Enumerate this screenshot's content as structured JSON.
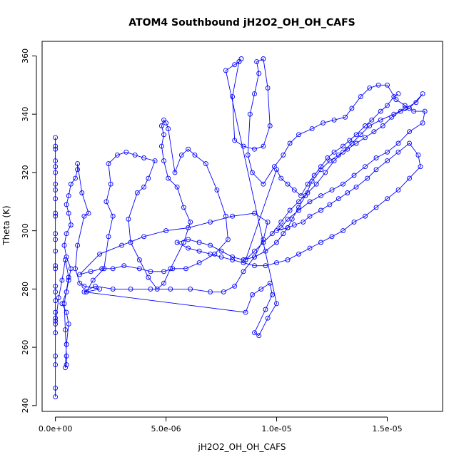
{
  "chart_data": {
    "type": "line",
    "title": "ATOM4 Southbound jH2O2_OH_OH_CAFS",
    "xlabel": "jH2O2_OH_OH_CAFS",
    "ylabel": "Theta (K)",
    "xlim": [
      -6e-07,
      1.75e-05
    ],
    "ylim": [
      238,
      365
    ],
    "x_ticks": [
      0,
      5e-06,
      1e-05,
      1.5e-05
    ],
    "x_tick_labels": [
      "0.0e+00",
      "5.0e-06",
      "1.0e-05",
      "1.5e-05"
    ],
    "y_ticks": [
      240,
      260,
      280,
      300,
      320,
      340,
      360
    ],
    "y_tick_labels": [
      "240",
      "260",
      "280",
      "300",
      "320",
      "340",
      "360"
    ],
    "grid": false,
    "legend": "none",
    "marker": "open-circle",
    "color": "#0000ff",
    "series": [
      {
        "points": [
          [
            0.0,
            243
          ],
          [
            0.0,
            246
          ],
          [
            0.0,
            254
          ],
          [
            0.0,
            257
          ],
          [
            0.0,
            265
          ],
          [
            0.0,
            269
          ],
          [
            0.0,
            272
          ],
          [
            0.0,
            276
          ],
          [
            0.0,
            281
          ],
          [
            0.0,
            287
          ],
          [
            0.0,
            293
          ],
          [
            0.0,
            299
          ],
          [
            0.0,
            305
          ],
          [
            0.0,
            311
          ],
          [
            0.0,
            316
          ],
          [
            0.0,
            320
          ],
          [
            0.0,
            324
          ],
          [
            0.0,
            328
          ],
          [
            0.0,
            332
          ],
          [
            0.0,
            329
          ],
          [
            0.0,
            322
          ],
          [
            0.0,
            314
          ],
          [
            0.0,
            306
          ],
          [
            0.0,
            297
          ],
          [
            0.0,
            288
          ],
          [
            0.0,
            279
          ],
          [
            0.0,
            270
          ],
          [
            0.0,
            268
          ],
          [
            1.5e-07,
            277
          ],
          [
            3e-07,
            283
          ],
          [
            4.5e-07,
            290
          ],
          [
            6e-07,
            284
          ],
          [
            4e-07,
            275
          ],
          [
            4.5e-07,
            266
          ],
          [
            5e-07,
            257
          ],
          [
            5e-07,
            254
          ],
          [
            4.5e-07,
            253
          ],
          [
            5e-07,
            261
          ],
          [
            6e-07,
            268
          ],
          [
            5e-07,
            272
          ],
          [
            3e-07,
            275
          ],
          [
            5e-07,
            279
          ],
          [
            6e-07,
            283
          ],
          [
            7e-07,
            287
          ],
          [
            5e-07,
            291
          ],
          [
            4e-07,
            295
          ],
          [
            5e-07,
            299
          ],
          [
            7e-07,
            302
          ],
          [
            6e-07,
            306
          ],
          [
            5e-07,
            309
          ],
          [
            6e-07,
            312
          ],
          [
            7e-07,
            316
          ],
          [
            9e-07,
            318
          ],
          [
            1e-06,
            321
          ],
          [
            1e-06,
            323
          ],
          [
            1.2e-06,
            313
          ],
          [
            1.5e-06,
            306
          ],
          [
            1.3e-06,
            305
          ],
          [
            1e-06,
            295
          ],
          [
            9e-07,
            287
          ],
          [
            1.1e-06,
            282
          ],
          [
            1.3e-06,
            281
          ],
          [
            2e-06,
            280
          ],
          [
            1.4e-06,
            279
          ],
          [
            1.7e-06,
            283
          ],
          [
            2.2e-06,
            287
          ],
          [
            2.4e-06,
            298
          ],
          [
            2.6e-06,
            305
          ],
          [
            2.3e-06,
            310
          ],
          [
            2.5e-06,
            316
          ],
          [
            2.4e-06,
            323
          ],
          [
            2.8e-06,
            326
          ],
          [
            3.2e-06,
            327
          ],
          [
            3.6e-06,
            326
          ],
          [
            4e-06,
            325
          ],
          [
            4.5e-06,
            324
          ],
          [
            4.2e-06,
            318
          ],
          [
            4e-06,
            315
          ],
          [
            3.7e-06,
            313
          ],
          [
            3.3e-06,
            304
          ],
          [
            3.4e-06,
            296
          ],
          [
            3.8e-06,
            290
          ],
          [
            4.2e-06,
            284
          ],
          [
            4.6e-06,
            280
          ],
          [
            4.9e-06,
            282
          ],
          [
            5.2e-06,
            287
          ],
          [
            5.8e-06,
            296
          ],
          [
            6.1e-06,
            303
          ],
          [
            5.8e-06,
            308
          ],
          [
            5.5e-06,
            315
          ],
          [
            5.1e-06,
            318
          ],
          [
            4.9e-06,
            324
          ],
          [
            4.8e-06,
            329
          ],
          [
            4.9e-06,
            333
          ],
          [
            4.8e-06,
            336
          ],
          [
            4.9e-06,
            338
          ],
          [
            5e-06,
            337
          ],
          [
            5.1e-06,
            335
          ],
          [
            5.4e-06,
            320
          ],
          [
            5.7e-06,
            326
          ],
          [
            6e-06,
            328
          ],
          [
            6.3e-06,
            326
          ],
          [
            6.8e-06,
            323
          ],
          [
            7.3e-06,
            314
          ],
          [
            7.7e-06,
            305
          ],
          [
            7.8e-06,
            297
          ],
          [
            7.2e-06,
            292
          ],
          [
            6.5e-06,
            289
          ],
          [
            5.9e-06,
            287
          ],
          [
            5.3e-06,
            287
          ],
          [
            4.9e-06,
            286
          ],
          [
            4.3e-06,
            286
          ],
          [
            3.8e-06,
            287
          ],
          [
            3.1e-06,
            288
          ],
          [
            2.6e-06,
            287
          ],
          [
            2.1e-06,
            287
          ],
          [
            1.6e-06,
            286
          ],
          [
            1.1e-06,
            285
          ],
          [
            2e-06,
            292
          ],
          [
            3e-06,
            295
          ],
          [
            4e-06,
            298
          ],
          [
            5e-06,
            300
          ],
          [
            6e-06,
            301
          ],
          [
            7e-06,
            303
          ],
          [
            8e-06,
            305
          ],
          [
            9e-06,
            306
          ],
          [
            9.6e-06,
            303
          ],
          [
            9.4e-06,
            297
          ],
          [
            9e-06,
            291
          ],
          [
            8.5e-06,
            286
          ],
          [
            8.1e-06,
            281
          ],
          [
            7.6e-06,
            279
          ],
          [
            7e-06,
            279
          ],
          [
            6.1e-06,
            280
          ],
          [
            5.2e-06,
            280
          ],
          [
            4.3e-06,
            280
          ],
          [
            3.4e-06,
            280
          ],
          [
            2.6e-06,
            280
          ],
          [
            1.8e-06,
            281
          ],
          [
            1.3e-06,
            279
          ],
          [
            8.6e-06,
            272
          ],
          [
            8.9e-06,
            278
          ],
          [
            9.3e-06,
            280
          ],
          [
            9.7e-06,
            282
          ],
          [
            9.8e-06,
            278
          ],
          [
            9.5e-06,
            273
          ],
          [
            9e-06,
            265
          ],
          [
            9.2e-06,
            264
          ],
          [
            9.6e-06,
            270
          ],
          [
            1e-05,
            275
          ],
          [
            7.7e-06,
            355
          ],
          [
            8.1e-06,
            357
          ],
          [
            8.3e-06,
            358
          ],
          [
            8.4e-06,
            359
          ],
          [
            8.3e-06,
            358
          ],
          [
            8e-06,
            346
          ],
          [
            8.1e-06,
            331
          ],
          [
            8.5e-06,
            329
          ],
          [
            9e-06,
            328
          ],
          [
            9.4e-06,
            329
          ],
          [
            9.7e-06,
            336
          ],
          [
            9.6e-06,
            349
          ],
          [
            9.4e-06,
            359
          ],
          [
            9.1e-06,
            358
          ],
          [
            9.2e-06,
            354
          ],
          [
            9e-06,
            347
          ],
          [
            8.8e-06,
            340
          ],
          [
            8.7e-06,
            326
          ],
          [
            8.9e-06,
            320
          ],
          [
            9.4e-06,
            316
          ],
          [
            9.9e-06,
            322
          ],
          [
            1.03e-05,
            326
          ],
          [
            1.06e-05,
            330
          ],
          [
            1.1e-05,
            333
          ],
          [
            1.16e-05,
            335
          ],
          [
            1.21e-05,
            337
          ],
          [
            1.26e-05,
            338
          ],
          [
            1.31e-05,
            339
          ],
          [
            1.34e-05,
            342
          ],
          [
            1.38e-05,
            346
          ],
          [
            1.42e-05,
            349
          ],
          [
            1.46e-05,
            350
          ],
          [
            1.5e-05,
            350
          ],
          [
            1.54e-05,
            345
          ],
          [
            1.58e-05,
            343
          ],
          [
            1.62e-05,
            341
          ],
          [
            1.67e-05,
            341
          ],
          [
            1.66e-05,
            337
          ],
          [
            1.6e-05,
            334
          ],
          [
            1.55e-05,
            330
          ],
          [
            1.5e-05,
            327
          ],
          [
            1.45e-05,
            325
          ],
          [
            1.4e-05,
            322
          ],
          [
            1.35e-05,
            319
          ],
          [
            1.3e-05,
            316
          ],
          [
            1.25e-05,
            314
          ],
          [
            1.2e-05,
            312
          ],
          [
            1.15e-05,
            310
          ],
          [
            1.1e-05,
            307
          ],
          [
            1.05e-05,
            304
          ],
          [
            1.02e-05,
            301
          ],
          [
            1e-05,
            300
          ],
          [
            1.05e-05,
            301
          ],
          [
            1.08e-05,
            302
          ],
          [
            1.12e-05,
            303
          ],
          [
            1.15e-05,
            305
          ],
          [
            1.2e-05,
            307
          ],
          [
            1.24e-05,
            309
          ],
          [
            1.28e-05,
            311
          ],
          [
            1.32e-05,
            313
          ],
          [
            1.36e-05,
            315
          ],
          [
            1.41e-05,
            318
          ],
          [
            1.45e-05,
            321
          ],
          [
            1.5e-05,
            324
          ],
          [
            1.55e-05,
            327
          ],
          [
            1.6e-05,
            330
          ],
          [
            1.64e-05,
            326
          ],
          [
            1.65e-05,
            322
          ],
          [
            1.6e-05,
            318
          ],
          [
            1.55e-05,
            314
          ],
          [
            1.5e-05,
            311
          ],
          [
            1.45e-05,
            308
          ],
          [
            1.4e-05,
            305
          ],
          [
            1.35e-05,
            303
          ],
          [
            1.3e-05,
            300
          ],
          [
            1.25e-05,
            298
          ],
          [
            1.2e-05,
            296
          ],
          [
            1.15e-05,
            294
          ],
          [
            1.1e-05,
            292
          ],
          [
            1.05e-05,
            290
          ],
          [
            1e-05,
            289
          ],
          [
            9.5e-06,
            288
          ],
          [
            9e-06,
            288
          ],
          [
            8.5e-06,
            289
          ],
          [
            8e-06,
            290
          ],
          [
            7.5e-06,
            291
          ],
          [
            7e-06,
            292
          ],
          [
            6.5e-06,
            293
          ],
          [
            6e-06,
            294
          ],
          [
            5.5e-06,
            296
          ],
          [
            6e-06,
            297
          ],
          [
            6.5e-06,
            296
          ],
          [
            7e-06,
            295
          ],
          [
            7.5e-06,
            293
          ],
          [
            8e-06,
            291
          ],
          [
            8.5e-06,
            290
          ],
          [
            9e-06,
            291
          ],
          [
            9.5e-06,
            293
          ],
          [
            1e-05,
            296
          ],
          [
            1.03e-05,
            299
          ],
          [
            1.05e-05,
            301
          ],
          [
            1.07e-05,
            304
          ],
          [
            1.1e-05,
            308
          ],
          [
            1.13e-05,
            312
          ],
          [
            1.16e-05,
            317
          ],
          [
            1.2e-05,
            321
          ],
          [
            1.24e-05,
            324
          ],
          [
            1.28e-05,
            326
          ],
          [
            1.32e-05,
            328
          ],
          [
            1.36e-05,
            330
          ],
          [
            1.4e-05,
            332
          ],
          [
            1.44e-05,
            334
          ],
          [
            1.48e-05,
            336
          ],
          [
            1.52e-05,
            339
          ],
          [
            1.56e-05,
            341
          ],
          [
            1.6e-05,
            342
          ],
          [
            1.66e-05,
            347
          ],
          [
            1.63e-05,
            344
          ],
          [
            1.58e-05,
            342
          ],
          [
            1.53e-05,
            340
          ],
          [
            1.47e-05,
            338
          ],
          [
            1.42e-05,
            336
          ],
          [
            1.38e-05,
            333
          ],
          [
            1.34e-05,
            330
          ],
          [
            1.3e-05,
            327
          ],
          [
            1.26e-05,
            324
          ],
          [
            1.22e-05,
            320
          ],
          [
            1.18e-05,
            316
          ],
          [
            1.14e-05,
            313
          ],
          [
            1.1e-05,
            310
          ],
          [
            1.06e-05,
            307
          ],
          [
            1.02e-05,
            303
          ],
          [
            9.8e-06,
            299
          ],
          [
            9.4e-06,
            296
          ],
          [
            9e-06,
            293
          ],
          [
            8.6e-06,
            290
          ],
          [
            1e-05,
            321
          ],
          [
            1.02e-05,
            318
          ],
          [
            1.05e-05,
            316
          ],
          [
            1.08e-05,
            314
          ],
          [
            1.11e-05,
            312
          ],
          [
            1.14e-05,
            316
          ],
          [
            1.17e-05,
            319
          ],
          [
            1.2e-05,
            322
          ],
          [
            1.23e-05,
            325
          ],
          [
            1.26e-05,
            327
          ],
          [
            1.3e-05,
            329
          ],
          [
            1.33e-05,
            331
          ],
          [
            1.36e-05,
            333
          ],
          [
            1.4e-05,
            336
          ],
          [
            1.43e-05,
            338
          ],
          [
            1.47e-05,
            341
          ],
          [
            1.5e-05,
            343
          ],
          [
            1.53e-05,
            346
          ],
          [
            1.55e-05,
            347
          ]
        ]
      }
    ]
  }
}
